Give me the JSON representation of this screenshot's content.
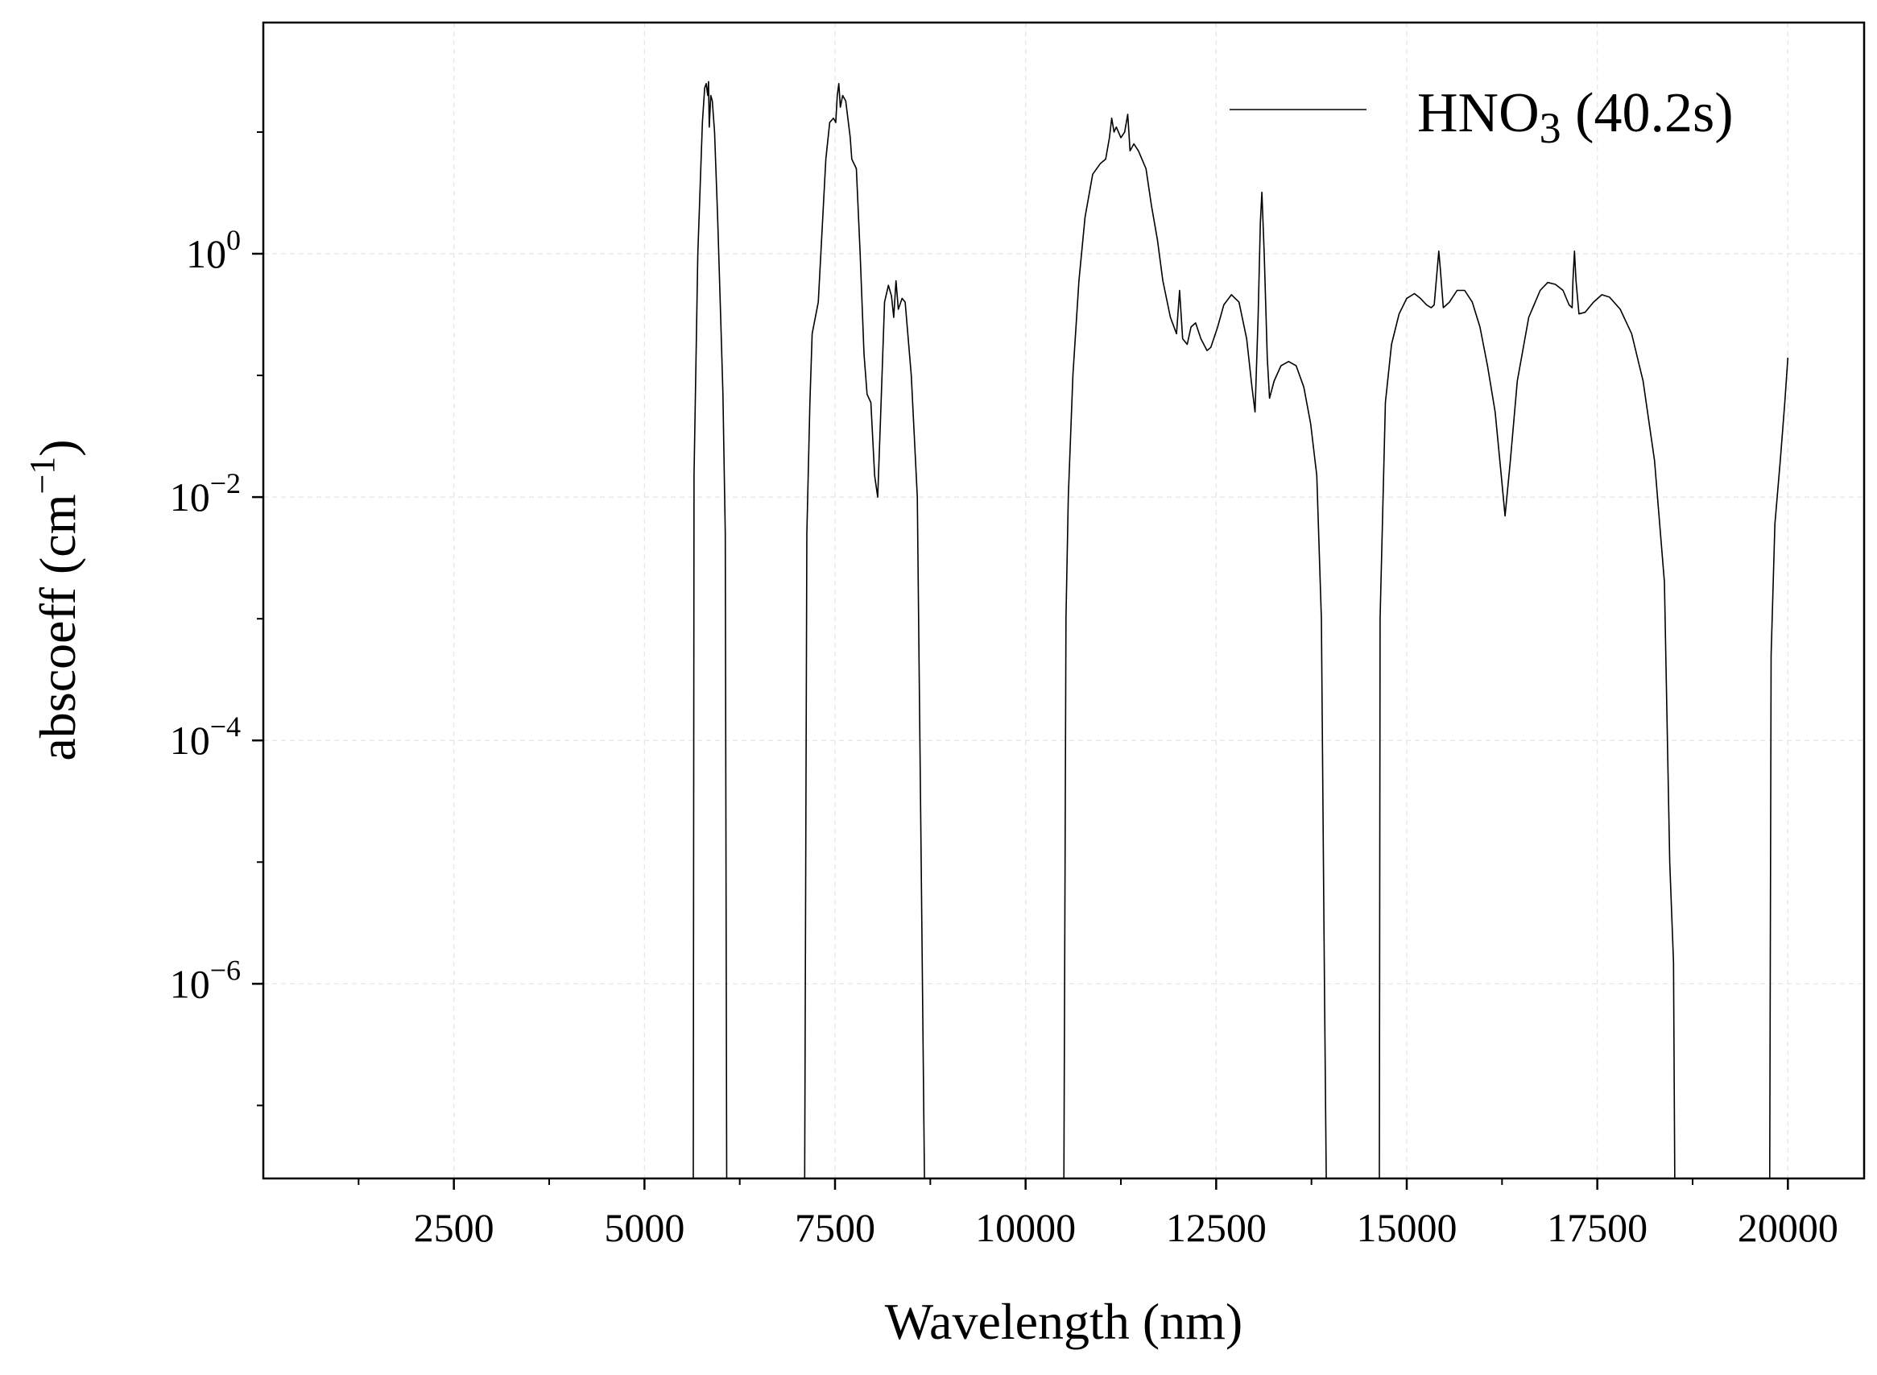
{
  "chart_data": {
    "type": "line",
    "title": "",
    "xlabel": "Wavelength (nm)",
    "ylabel_base": "abscoeff (cm",
    "ylabel_exp": "−1",
    "ylabel_end": ")",
    "xlim": [
      0,
      21000
    ],
    "ylim_log10": [
      -7.6,
      1.9
    ],
    "yscale": "log",
    "grid": true,
    "legend_position": "top-right",
    "x_ticks": [
      2500,
      5000,
      7500,
      10000,
      12500,
      15000,
      17500,
      20000
    ],
    "x_tick_labels": [
      "2500",
      "5000",
      "7500",
      "10000",
      "12500",
      "15000",
      "17500",
      "20000"
    ],
    "x_minor_ticks": [
      1250,
      3750,
      6250,
      8750,
      11250,
      13750,
      16250,
      18750
    ],
    "y_ticks_log10": [
      0,
      -2,
      -4,
      -6
    ],
    "y_tick_base": "10",
    "y_tick_exps": [
      "0",
      "−2",
      "−4",
      "−6"
    ],
    "series": [
      {
        "name_base": "HNO",
        "name_sub": "3",
        "name_suffix": " (40.2s)",
        "color": "#000000",
        "segments": [
          [
            [
              5640,
              1e-08
            ],
            [
              5650,
              0.015
            ],
            [
              5700,
              1.0
            ],
            [
              5760,
              12
            ],
            [
              5790,
              23
            ],
            [
              5810,
              25
            ],
            [
              5830,
              20
            ],
            [
              5840,
              26
            ],
            [
              5850,
              11
            ],
            [
              5870,
              20
            ],
            [
              5890,
              18
            ],
            [
              5920,
              10
            ],
            [
              5960,
              2
            ],
            [
              6000,
              0.3
            ],
            [
              6030,
              0.07
            ],
            [
              6060,
              0.005
            ],
            [
              6080,
              1e-08
            ]
          ],
          [
            [
              7100,
              1e-08
            ],
            [
              7130,
              0.005
            ],
            [
              7170,
              0.06
            ],
            [
              7200,
              0.22
            ],
            [
              7280,
              0.4
            ],
            [
              7380,
              6
            ],
            [
              7430,
              12
            ],
            [
              7480,
              13
            ],
            [
              7510,
              12
            ],
            [
              7530,
              20
            ],
            [
              7550,
              25
            ],
            [
              7570,
              16
            ],
            [
              7600,
              20
            ],
            [
              7640,
              18
            ],
            [
              7700,
              9
            ],
            [
              7720,
              6
            ],
            [
              7780,
              5
            ],
            [
              7830,
              1
            ],
            [
              7880,
              0.15
            ],
            [
              7920,
              0.07
            ],
            [
              7970,
              0.06
            ],
            [
              8020,
              0.015
            ],
            [
              8060,
              0.01
            ],
            [
              8100,
              0.05
            ],
            [
              8150,
              0.4
            ],
            [
              8200,
              0.55
            ],
            [
              8240,
              0.45
            ],
            [
              8270,
              0.3
            ],
            [
              8300,
              0.6
            ],
            [
              8330,
              0.35
            ],
            [
              8380,
              0.43
            ],
            [
              8420,
              0.4
            ],
            [
              8500,
              0.1
            ],
            [
              8580,
              0.01
            ],
            [
              8630,
              1e-05
            ],
            [
              8680,
              1e-08
            ]
          ],
          [
            [
              10500,
              1e-08
            ],
            [
              10530,
              0.001
            ],
            [
              10560,
              0.01
            ],
            [
              10620,
              0.1
            ],
            [
              10700,
              0.6
            ],
            [
              10780,
              2
            ],
            [
              10880,
              4.5
            ],
            [
              10980,
              5.5
            ],
            [
              11050,
              6
            ],
            [
              11100,
              9
            ],
            [
              11130,
              13
            ],
            [
              11160,
              10
            ],
            [
              11190,
              11
            ],
            [
              11250,
              9
            ],
            [
              11300,
              10
            ],
            [
              11340,
              14
            ],
            [
              11370,
              7
            ],
            [
              11420,
              8
            ],
            [
              11480,
              7
            ],
            [
              11580,
              5
            ],
            [
              11650,
              2.5
            ],
            [
              11730,
              1.3
            ],
            [
              11800,
              0.6
            ],
            [
              11900,
              0.3
            ],
            [
              11980,
              0.22
            ],
            [
              12020,
              0.5
            ],
            [
              12060,
              0.2
            ],
            [
              12120,
              0.18
            ],
            [
              12170,
              0.25
            ],
            [
              12230,
              0.27
            ],
            [
              12300,
              0.2
            ],
            [
              12380,
              0.16
            ],
            [
              12430,
              0.17
            ],
            [
              12520,
              0.25
            ],
            [
              12600,
              0.38
            ],
            [
              12700,
              0.46
            ],
            [
              12800,
              0.4
            ],
            [
              12900,
              0.2
            ],
            [
              12970,
              0.08
            ],
            [
              13010,
              0.05
            ],
            [
              13050,
              0.3
            ],
            [
              13080,
              1.8
            ],
            [
              13100,
              3.2
            ],
            [
              13130,
              1.0
            ],
            [
              13170,
              0.14
            ],
            [
              13200,
              0.065
            ],
            [
              13260,
              0.09
            ],
            [
              13350,
              0.12
            ],
            [
              13450,
              0.13
            ],
            [
              13550,
              0.12
            ],
            [
              13650,
              0.08
            ],
            [
              13740,
              0.04
            ],
            [
              13820,
              0.015
            ],
            [
              13880,
              0.001
            ],
            [
              13920,
              1e-06
            ],
            [
              13950,
              1e-08
            ]
          ],
          [
            [
              14640,
              1e-08
            ],
            [
              14650,
              0.001
            ],
            [
              14720,
              0.06
            ],
            [
              14800,
              0.18
            ],
            [
              14900,
              0.32
            ],
            [
              15000,
              0.43
            ],
            [
              15100,
              0.47
            ],
            [
              15180,
              0.43
            ],
            [
              15260,
              0.38
            ],
            [
              15320,
              0.36
            ],
            [
              15360,
              0.38
            ],
            [
              15400,
              0.75
            ],
            [
              15420,
              1.05
            ],
            [
              15440,
              0.75
            ],
            [
              15480,
              0.36
            ],
            [
              15560,
              0.4
            ],
            [
              15660,
              0.5
            ],
            [
              15760,
              0.5
            ],
            [
              15860,
              0.4
            ],
            [
              15960,
              0.25
            ],
            [
              16060,
              0.12
            ],
            [
              16160,
              0.05
            ],
            [
              16240,
              0.015
            ],
            [
              16290,
              0.007
            ],
            [
              16360,
              0.02
            ],
            [
              16450,
              0.09
            ],
            [
              16600,
              0.3
            ],
            [
              16750,
              0.5
            ],
            [
              16850,
              0.58
            ],
            [
              16950,
              0.56
            ],
            [
              17050,
              0.5
            ],
            [
              17130,
              0.38
            ],
            [
              17170,
              0.36
            ],
            [
              17180,
              0.6
            ],
            [
              17200,
              1.05
            ],
            [
              17220,
              0.6
            ],
            [
              17260,
              0.32
            ],
            [
              17340,
              0.33
            ],
            [
              17450,
              0.4
            ],
            [
              17560,
              0.46
            ],
            [
              17660,
              0.44
            ],
            [
              17800,
              0.35
            ],
            [
              17950,
              0.22
            ],
            [
              18100,
              0.09
            ],
            [
              18250,
              0.02
            ],
            [
              18380,
              0.002
            ],
            [
              18450,
              1e-05
            ],
            [
              18500,
              1.5e-06
            ],
            [
              18520,
              1e-08
            ]
          ],
          [
            [
              19760,
              1e-08
            ],
            [
              19780,
              0.0005
            ],
            [
              19830,
              0.006
            ],
            [
              19900,
              0.02
            ],
            [
              19960,
              0.06
            ],
            [
              20000,
              0.14
            ]
          ]
        ]
      }
    ]
  }
}
